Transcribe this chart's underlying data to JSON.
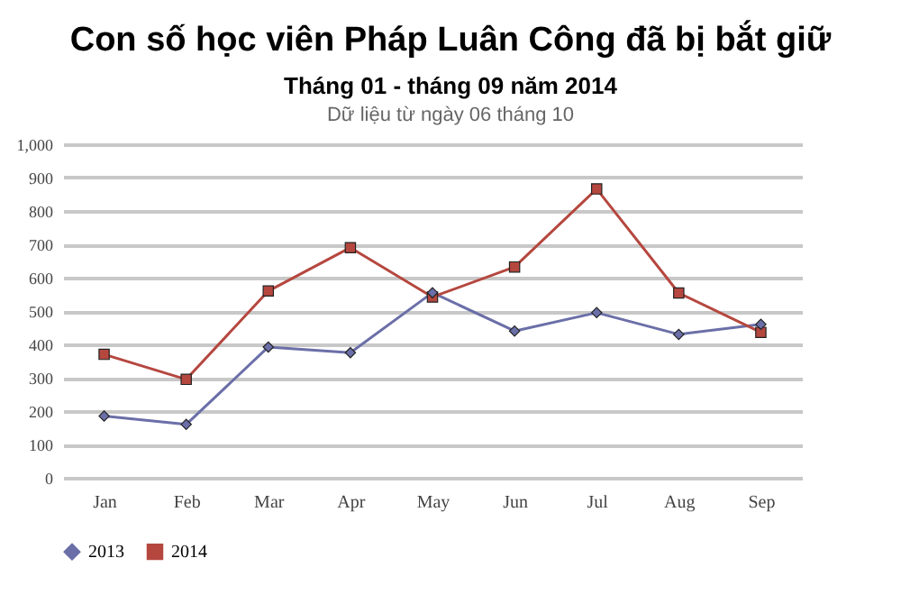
{
  "chart_data": {
    "type": "line",
    "title": "Con số học viên Pháp Luân Công đã bị bắt giữ",
    "subtitle": "Tháng 01 - tháng 09 năm 2014",
    "annotations": [
      "Dữ liệu từ ngày 06 tháng 10"
    ],
    "categories": [
      "Jan",
      "Feb",
      "Mar",
      "Apr",
      "May",
      "Jun",
      "Jul",
      "Aug",
      "Sep"
    ],
    "series": [
      {
        "name": "2013",
        "color": "#6b6fa8",
        "marker": "diamond",
        "values": [
          185,
          160,
          392,
          375,
          555,
          440,
          495,
          430,
          460
        ]
      },
      {
        "name": "2014",
        "color": "#b5473f",
        "marker": "square",
        "values": [
          370,
          295,
          560,
          690,
          542,
          632,
          866,
          554,
          436
        ]
      }
    ],
    "ylim": [
      0,
      1000
    ],
    "yticks": [
      0,
      100,
      200,
      300,
      400,
      500,
      600,
      700,
      800,
      900,
      {
        "value": 1000,
        "label": "1,000"
      }
    ],
    "grid": "y",
    "legend": "bottom",
    "line_style": "solid"
  }
}
